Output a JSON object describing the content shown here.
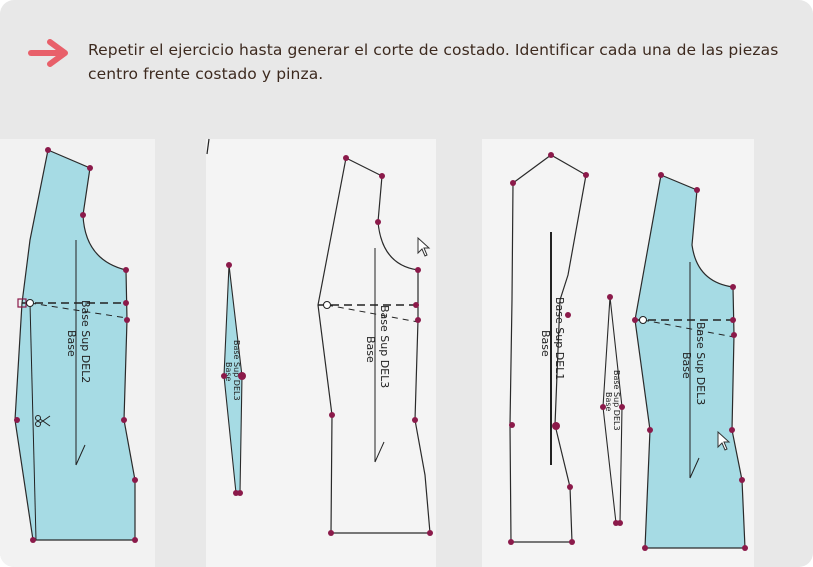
{
  "instruction": {
    "icon": "arrow-right-icon",
    "accent_color": "#e8606a",
    "text": "Repetir el ejercicio hasta generar el corte de costado. Identificar cada una de las piezas centro frente costado y pinza."
  },
  "pieces": {
    "del2": {
      "name": "Base Sup DEL2",
      "sub": "Base"
    },
    "dart_a": {
      "name": "Base Sup DEL3",
      "sub": "Base"
    },
    "del3_a": {
      "name": "Base Sup DEL3",
      "sub": "Base"
    },
    "del1": {
      "name": "Base Sup DEL1",
      "sub": "Base"
    },
    "dart_b": {
      "name": "Base Sup DEL3",
      "sub": "Base"
    },
    "del3_b": {
      "name": "Base Sup DEL3",
      "sub": "Base"
    }
  },
  "colors": {
    "fill_blue": "#a6dbe4",
    "point": "#8b1a4a",
    "panel_bg": "#f4f4f4"
  }
}
